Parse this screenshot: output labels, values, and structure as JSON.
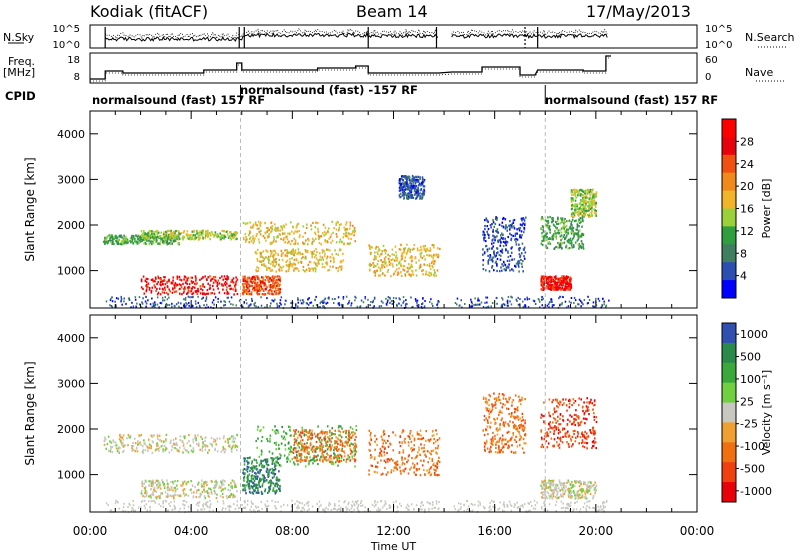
{
  "header": {
    "station": "Kodiak (fitACF)",
    "beam": "Beam 14",
    "date": "17/May/2013"
  },
  "summary_panels": {
    "sky": {
      "left_label": "N.Sky",
      "right_label": "N.Search",
      "left_ticks": [
        "10^5",
        "10^0"
      ],
      "right_ticks": [
        "10^5",
        "10^0"
      ]
    },
    "freq": {
      "left_label_top": "Freq.",
      "left_label_bottom": "[MHz]",
      "right_label": "Nave",
      "left_ticks": [
        "18",
        "8"
      ],
      "right_ticks": [
        "60",
        "0"
      ]
    },
    "cpid": {
      "label": "CPID",
      "segments": [
        "normalsound (fast) 157 RF",
        "normalsound (fast) -157 RF",
        "normalsound (fast) 157 RF"
      ]
    }
  },
  "chart_data": [
    {
      "type": "heatmap",
      "quantity": "Power",
      "ylabel": "Slant Range [km]",
      "ylim": [
        180,
        4500
      ],
      "yticks": [
        "1000",
        "2000",
        "3000",
        "4000"
      ],
      "colorbar_label": "Power [dB]",
      "colorbar_ticks": [
        "4",
        "8",
        "12",
        "16",
        "20",
        "24",
        "28"
      ],
      "colors": [
        "#0000ff",
        "#2a4fb0",
        "#3f7f60",
        "#2e9e3e",
        "#9ad13a",
        "#f2b428",
        "#f08a1a",
        "#f05010",
        "#e8000a",
        "#ff0000"
      ],
      "scatter_bands": [
        {
          "x": [
            0.5,
            3.5
          ],
          "y": [
            1600,
            1800
          ],
          "v": 3
        },
        {
          "x": [
            2.0,
            5.8
          ],
          "y": [
            1700,
            1900
          ],
          "v": 4
        },
        {
          "x": [
            6.0,
            10.5
          ],
          "y": [
            1600,
            2100
          ],
          "v": 5
        },
        {
          "x": [
            6.5,
            10.0
          ],
          "y": [
            1000,
            1500
          ],
          "v": 5
        },
        {
          "x": [
            2.0,
            5.8
          ],
          "y": [
            500,
            900
          ],
          "v": 8
        },
        {
          "x": [
            6.0,
            7.5
          ],
          "y": [
            500,
            900
          ],
          "v": 7
        },
        {
          "x": [
            11.0,
            13.8
          ],
          "y": [
            900,
            1600
          ],
          "v": 5
        },
        {
          "x": [
            12.2,
            13.2
          ],
          "y": [
            2600,
            3100
          ],
          "v": 1
        },
        {
          "x": [
            15.5,
            17.2
          ],
          "y": [
            1000,
            2200
          ],
          "v": 1
        },
        {
          "x": [
            17.8,
            19.5
          ],
          "y": [
            1500,
            2200
          ],
          "v": 3
        },
        {
          "x": [
            19.0,
            20.0
          ],
          "y": [
            2200,
            2800
          ],
          "v": 4
        },
        {
          "x": [
            17.8,
            19.0
          ],
          "y": [
            600,
            900
          ],
          "v": 8
        }
      ]
    },
    {
      "type": "heatmap",
      "quantity": "Velocity",
      "ylabel": "Slant Range [km]",
      "ylim": [
        180,
        4500
      ],
      "yticks": [
        "1000",
        "2000",
        "3000",
        "4000"
      ],
      "xlabel": "Time UT",
      "xticks": [
        "00:00",
        "04:00",
        "08:00",
        "12:00",
        "16:00",
        "20:00",
        "00:00"
      ],
      "colorbar_label": "Velocity [m s⁻¹]",
      "colorbar_ticks": [
        "1000",
        "500",
        "100",
        "25",
        "-25",
        "-100",
        "-500",
        "-1000"
      ],
      "colors": [
        "#3050b0",
        "#2a8a4a",
        "#3aa83a",
        "#70d040",
        "#c8c8c0",
        "#f0a030",
        "#f07010",
        "#f04010",
        "#e8000a"
      ],
      "scatter_bands": [
        {
          "x": [
            0.5,
            5.8
          ],
          "y": [
            1500,
            1900
          ],
          "v": 4
        },
        {
          "x": [
            2.0,
            5.8
          ],
          "y": [
            500,
            900
          ],
          "v": 4
        },
        {
          "x": [
            6.0,
            7.5
          ],
          "y": [
            600,
            1400
          ],
          "v": 1
        },
        {
          "x": [
            6.5,
            10.5
          ],
          "y": [
            1200,
            2100
          ],
          "v": 2
        },
        {
          "x": [
            8.0,
            10.5
          ],
          "y": [
            1300,
            2000
          ],
          "v": 6
        },
        {
          "x": [
            11.0,
            13.8
          ],
          "y": [
            1000,
            2000
          ],
          "v": 6
        },
        {
          "x": [
            15.5,
            17.2
          ],
          "y": [
            1500,
            2800
          ],
          "v": 6
        },
        {
          "x": [
            17.8,
            20.0
          ],
          "y": [
            1600,
            2700
          ],
          "v": 7
        },
        {
          "x": [
            17.8,
            20.0
          ],
          "y": [
            500,
            900
          ],
          "v": 4
        }
      ]
    }
  ]
}
